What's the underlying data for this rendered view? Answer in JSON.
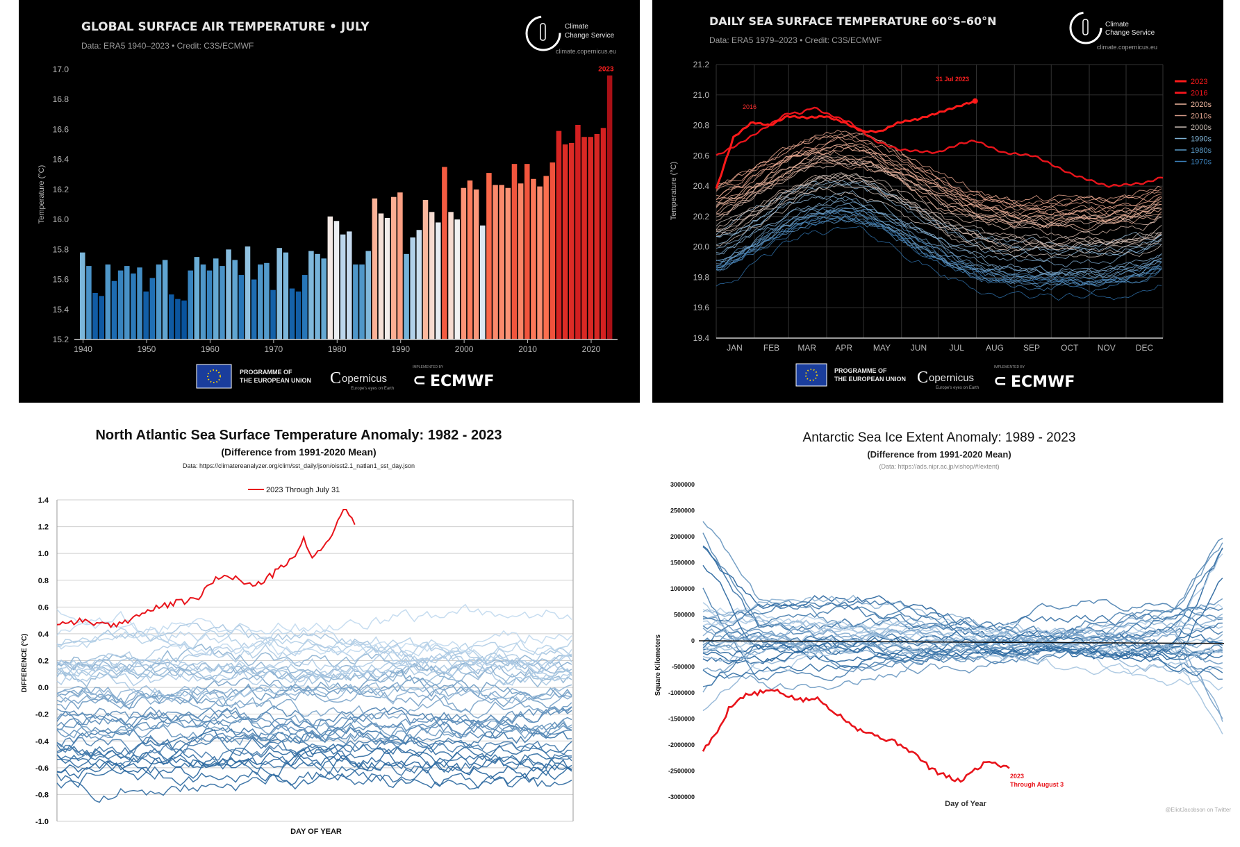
{
  "panels": {
    "p1": {
      "title": "GLOBAL SURFACE AIR TEMPERATURE • JULY",
      "subtitle": "Data: ERA5 1940–2023 • Credit: C3S/ECMWF",
      "ylabel": "Temperature (°C)",
      "highlight_label": "2023",
      "logo": {
        "line1": "Climate",
        "line2": "Change Service",
        "url": "climate.copernicus.eu"
      },
      "footer": {
        "eu": "PROGRAMME OF",
        "eu2": "THE EUROPEAN UNION",
        "copernicus": "opernicus",
        "copernicus_tag": "Europe's eyes on Earth",
        "impl": "IMPLEMENTED BY",
        "ecmwf": "ECMWF"
      }
    },
    "p2": {
      "title": "DAILY SEA SURFACE TEMPERATURE 60°S–60°N",
      "subtitle": "Data: ERA5 1979–2023 • Credit: C3S/ECMWF",
      "ylabel": "Temperature (°C)",
      "annot_2023": "31 Jul 2023",
      "annot_2016": "2016",
      "logo": {
        "line1": "Climate",
        "line2": "Change Service",
        "url": "climate.copernicus.eu"
      },
      "footer": {
        "eu": "PROGRAMME OF",
        "eu2": "THE EUROPEAN UNION",
        "copernicus": "opernicus",
        "copernicus_tag": "Europe's eyes on Earth",
        "impl": "IMPLEMENTED BY",
        "ecmwf": "ECMWF"
      }
    },
    "p3": {
      "title": "North Atlantic Sea Surface Temperature Anomaly: 1982 - 2023",
      "subtitle": "(Difference from 1991-2020 Mean)",
      "source": "Data: https://climatereanalyzer.org/clim/sst_daily/json/oisst2.1_natlan1_sst_day.json",
      "legend": "2023 Through July 31",
      "ylabel": "DIFFERENCE (°C)",
      "xlabel": "DAY OF YEAR"
    },
    "p4": {
      "title": "Antarctic Sea Ice Extent Anomaly: 1989 - 2023",
      "subtitle": "(Difference from 1991-2020 Mean)",
      "source": "(Data: https://ads.nipr.ac.jp/vishop/#/extent)",
      "ylabel": "Square Kilometers",
      "xlabel": "Day of Year",
      "annot1": "2023",
      "annot2": "Through August 3",
      "credit": "@EliotJacobson on Twitter"
    }
  },
  "colors": {
    "highlight": "#e8141b",
    "dark_blue": "#08519c",
    "mid_blue": "#4292c6",
    "light_blue": "#c6dbef",
    "pale": "#f2f2f2",
    "salmon": "#fcbba1",
    "red": "#cb181d"
  },
  "chart_data": [
    {
      "type": "bar",
      "title": "GLOBAL SURFACE AIR TEMPERATURE • JULY",
      "ylabel": "Temperature (°C)",
      "ylim": [
        15.2,
        17.0
      ],
      "yticks": [
        "15.2",
        "15.4",
        "15.6",
        "15.8",
        "16.0",
        "16.2",
        "16.4",
        "16.6",
        "16.8",
        "17.0"
      ],
      "xticks": [
        "1940",
        "1950",
        "1960",
        "1970",
        "1980",
        "1990",
        "2000",
        "2010",
        "2020"
      ],
      "x_start": 1940,
      "values": [
        15.78,
        15.69,
        15.51,
        15.49,
        15.7,
        15.59,
        15.66,
        15.69,
        15.64,
        15.68,
        15.52,
        15.61,
        15.7,
        15.73,
        15.5,
        15.47,
        15.46,
        15.66,
        15.75,
        15.7,
        15.66,
        15.74,
        15.69,
        15.8,
        15.73,
        15.63,
        15.82,
        15.6,
        15.7,
        15.71,
        15.53,
        15.81,
        15.78,
        15.54,
        15.52,
        15.63,
        15.79,
        15.77,
        15.74,
        16.02,
        15.99,
        15.9,
        15.92,
        15.7,
        15.7,
        15.79,
        16.14,
        16.04,
        16.01,
        16.15,
        16.18,
        15.77,
        15.88,
        15.93,
        16.13,
        16.05,
        15.98,
        16.35,
        16.05,
        16.0,
        16.21,
        16.26,
        16.2,
        15.96,
        16.31,
        16.23,
        16.23,
        16.21,
        16.37,
        16.24,
        16.37,
        16.27,
        16.22,
        16.29,
        16.38,
        16.59,
        16.5,
        16.51,
        16.63,
        16.55,
        16.55,
        16.57,
        16.61,
        16.96
      ],
      "grid": "off",
      "highlight": "2023"
    },
    {
      "type": "line",
      "title": "DAILY SEA SURFACE TEMPERATURE 60°S–60°N",
      "ylabel": "Temperature (°C)",
      "ylim": [
        19.4,
        21.2
      ],
      "yticks": [
        "19.4",
        "19.6",
        "19.8",
        "20.0",
        "20.2",
        "20.4",
        "20.6",
        "20.8",
        "21.0",
        "21.2"
      ],
      "xticks": [
        "JAN",
        "FEB",
        "MAR",
        "APR",
        "MAY",
        "JUN",
        "JUL",
        "AUG",
        "SEP",
        "OCT",
        "NOV",
        "DEC"
      ],
      "legend": [
        "2023",
        "2016",
        "2020s",
        "2010s",
        "2000s",
        "1990s",
        "1980s",
        "1970s"
      ],
      "legend_colors": [
        "#ff1a1a",
        "#e8141b",
        "#f2b8a0",
        "#d49a86",
        "#c9bcb4",
        "#7fb3d5",
        "#5b9cc9",
        "#3b7fb8"
      ],
      "legend_placement": "right",
      "series": [
        {
          "name": "2023",
          "x": [
            1,
            15,
            30,
            45,
            59,
            75,
            90,
            105,
            120,
            135,
            150,
            165,
            181,
            196,
            212
          ],
          "y": [
            20.38,
            20.72,
            20.82,
            20.8,
            20.86,
            20.85,
            20.86,
            20.82,
            20.76,
            20.76,
            20.82,
            20.84,
            20.88,
            20.92,
            20.96
          ]
        },
        {
          "name": "2016",
          "x": [
            1,
            20,
            40,
            59,
            70,
            80,
            90,
            110,
            130,
            150,
            181,
            200,
            212,
            235,
            260,
            290,
            320,
            350,
            365
          ],
          "y": [
            20.6,
            20.68,
            20.78,
            20.88,
            20.88,
            20.92,
            20.88,
            20.82,
            20.7,
            20.64,
            20.62,
            20.68,
            20.7,
            20.62,
            20.6,
            20.48,
            20.4,
            20.42,
            20.46
          ]
        }
      ],
      "grid": "on"
    },
    {
      "type": "line",
      "title": "North Atlantic Sea Surface Temperature Anomaly: 1982 - 2023",
      "ylabel": "DIFFERENCE (°C)",
      "xlabel": "DAY OF YEAR",
      "ylim": [
        -1.0,
        1.4
      ],
      "yticks": [
        "1.4",
        "1.2",
        "1.0",
        "0.8",
        "0.6",
        "0.4",
        "0.2",
        "0.0",
        "-0.2",
        "-0.4",
        "-0.6",
        "-0.8",
        "-1.0"
      ],
      "legend": [
        "2023 Through July 31"
      ],
      "legend_placement": "top",
      "series": [
        {
          "name": "2023 Through July 31",
          "x": [
            1,
            20,
            40,
            60,
            80,
            100,
            110,
            120,
            130,
            140,
            150,
            160,
            170,
            175,
            180,
            190,
            200,
            205,
            212
          ],
          "y": [
            0.48,
            0.5,
            0.45,
            0.55,
            0.62,
            0.66,
            0.78,
            0.85,
            0.8,
            0.75,
            0.82,
            0.9,
            0.98,
            1.12,
            0.98,
            1.05,
            1.25,
            1.34,
            1.2
          ]
        }
      ],
      "grid": "on"
    },
    {
      "type": "line",
      "title": "Antarctic Sea Ice Extent Anomaly: 1989 - 2023",
      "ylabel": "Square Kilometers",
      "xlabel": "Day of Year",
      "ylim": [
        -3000000,
        3000000
      ],
      "yticks": [
        "3000000",
        "2500000",
        "2000000",
        "1500000",
        "1000000",
        "500000",
        "0",
        "-500000",
        "-1000000",
        "-1500000",
        "-2000000",
        "-2500000",
        "-3000000"
      ],
      "series": [
        {
          "name": "2023 Through August 3",
          "x": [
            1,
            10,
            20,
            30,
            40,
            50,
            60,
            70,
            80,
            90,
            100,
            110,
            120,
            130,
            140,
            150,
            160,
            170,
            180,
            190,
            200,
            210,
            215
          ],
          "y": [
            -2100000,
            -1800000,
            -1250000,
            -1050000,
            -1000000,
            -950000,
            -1050000,
            -1150000,
            -1100000,
            -1300000,
            -1500000,
            -1700000,
            -1800000,
            -1900000,
            -2000000,
            -2200000,
            -2450000,
            -2600000,
            -2700000,
            -2500000,
            -2300000,
            -2400000,
            -2420000
          ]
        }
      ],
      "grid": "off",
      "credit": "@EliotJacobson on Twitter"
    }
  ]
}
